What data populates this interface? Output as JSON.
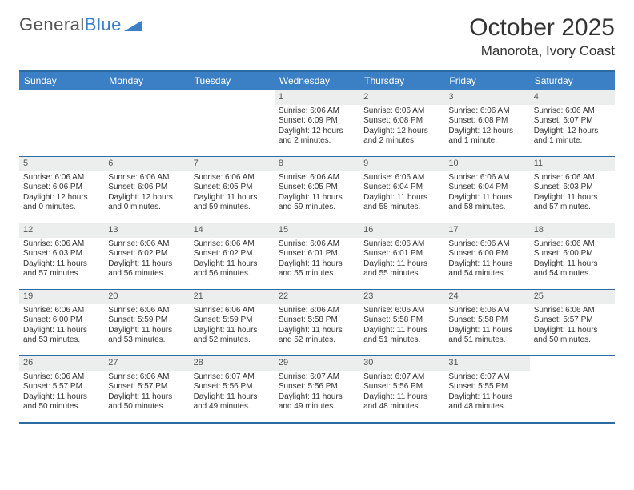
{
  "logo": {
    "text1": "General",
    "text2": "Blue"
  },
  "title": "October 2025",
  "location": "Manorota, Ivory Coast",
  "colors": {
    "headerBg": "#3b7fc4",
    "border": "#2d6ca2",
    "numBg": "#eceded",
    "text": "#333333"
  },
  "dayNames": [
    "Sunday",
    "Monday",
    "Tuesday",
    "Wednesday",
    "Thursday",
    "Friday",
    "Saturday"
  ],
  "weeks": [
    [
      null,
      null,
      null,
      {
        "n": "1",
        "sr": "6:06 AM",
        "ss": "6:09 PM",
        "dl": "12 hours and 2 minutes."
      },
      {
        "n": "2",
        "sr": "6:06 AM",
        "ss": "6:08 PM",
        "dl": "12 hours and 2 minutes."
      },
      {
        "n": "3",
        "sr": "6:06 AM",
        "ss": "6:08 PM",
        "dl": "12 hours and 1 minute."
      },
      {
        "n": "4",
        "sr": "6:06 AM",
        "ss": "6:07 PM",
        "dl": "12 hours and 1 minute."
      }
    ],
    [
      {
        "n": "5",
        "sr": "6:06 AM",
        "ss": "6:06 PM",
        "dl": "12 hours and 0 minutes."
      },
      {
        "n": "6",
        "sr": "6:06 AM",
        "ss": "6:06 PM",
        "dl": "12 hours and 0 minutes."
      },
      {
        "n": "7",
        "sr": "6:06 AM",
        "ss": "6:05 PM",
        "dl": "11 hours and 59 minutes."
      },
      {
        "n": "8",
        "sr": "6:06 AM",
        "ss": "6:05 PM",
        "dl": "11 hours and 59 minutes."
      },
      {
        "n": "9",
        "sr": "6:06 AM",
        "ss": "6:04 PM",
        "dl": "11 hours and 58 minutes."
      },
      {
        "n": "10",
        "sr": "6:06 AM",
        "ss": "6:04 PM",
        "dl": "11 hours and 58 minutes."
      },
      {
        "n": "11",
        "sr": "6:06 AM",
        "ss": "6:03 PM",
        "dl": "11 hours and 57 minutes."
      }
    ],
    [
      {
        "n": "12",
        "sr": "6:06 AM",
        "ss": "6:03 PM",
        "dl": "11 hours and 57 minutes."
      },
      {
        "n": "13",
        "sr": "6:06 AM",
        "ss": "6:02 PM",
        "dl": "11 hours and 56 minutes."
      },
      {
        "n": "14",
        "sr": "6:06 AM",
        "ss": "6:02 PM",
        "dl": "11 hours and 56 minutes."
      },
      {
        "n": "15",
        "sr": "6:06 AM",
        "ss": "6:01 PM",
        "dl": "11 hours and 55 minutes."
      },
      {
        "n": "16",
        "sr": "6:06 AM",
        "ss": "6:01 PM",
        "dl": "11 hours and 55 minutes."
      },
      {
        "n": "17",
        "sr": "6:06 AM",
        "ss": "6:00 PM",
        "dl": "11 hours and 54 minutes."
      },
      {
        "n": "18",
        "sr": "6:06 AM",
        "ss": "6:00 PM",
        "dl": "11 hours and 54 minutes."
      }
    ],
    [
      {
        "n": "19",
        "sr": "6:06 AM",
        "ss": "6:00 PM",
        "dl": "11 hours and 53 minutes."
      },
      {
        "n": "20",
        "sr": "6:06 AM",
        "ss": "5:59 PM",
        "dl": "11 hours and 53 minutes."
      },
      {
        "n": "21",
        "sr": "6:06 AM",
        "ss": "5:59 PM",
        "dl": "11 hours and 52 minutes."
      },
      {
        "n": "22",
        "sr": "6:06 AM",
        "ss": "5:58 PM",
        "dl": "11 hours and 52 minutes."
      },
      {
        "n": "23",
        "sr": "6:06 AM",
        "ss": "5:58 PM",
        "dl": "11 hours and 51 minutes."
      },
      {
        "n": "24",
        "sr": "6:06 AM",
        "ss": "5:58 PM",
        "dl": "11 hours and 51 minutes."
      },
      {
        "n": "25",
        "sr": "6:06 AM",
        "ss": "5:57 PM",
        "dl": "11 hours and 50 minutes."
      }
    ],
    [
      {
        "n": "26",
        "sr": "6:06 AM",
        "ss": "5:57 PM",
        "dl": "11 hours and 50 minutes."
      },
      {
        "n": "27",
        "sr": "6:06 AM",
        "ss": "5:57 PM",
        "dl": "11 hours and 50 minutes."
      },
      {
        "n": "28",
        "sr": "6:07 AM",
        "ss": "5:56 PM",
        "dl": "11 hours and 49 minutes."
      },
      {
        "n": "29",
        "sr": "6:07 AM",
        "ss": "5:56 PM",
        "dl": "11 hours and 49 minutes."
      },
      {
        "n": "30",
        "sr": "6:07 AM",
        "ss": "5:56 PM",
        "dl": "11 hours and 48 minutes."
      },
      {
        "n": "31",
        "sr": "6:07 AM",
        "ss": "5:55 PM",
        "dl": "11 hours and 48 minutes."
      },
      null
    ]
  ],
  "labels": {
    "sunrise": "Sunrise:",
    "sunset": "Sunset:",
    "daylight": "Daylight:"
  }
}
